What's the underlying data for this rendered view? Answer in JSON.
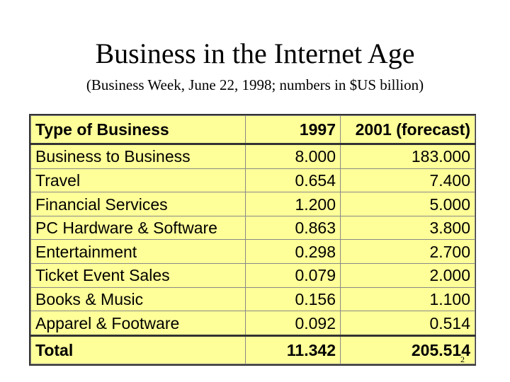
{
  "slide": {
    "title": "Business in the Internet Age",
    "subtitle": "(Business Week, June 22, 1998; numbers in $US billion)",
    "page_number": "2"
  },
  "table": {
    "headers": [
      "Type of Business",
      "1997",
      "2001 (forecast)"
    ],
    "rows": [
      [
        "Business to Business",
        "8.000",
        "183.000"
      ],
      [
        "Travel",
        "0.654",
        "7.400"
      ],
      [
        "Financial Services",
        "1.200",
        "5.000"
      ],
      [
        "PC Hardware & Software",
        "0.863",
        "3.800"
      ],
      [
        "Entertainment",
        "0.298",
        "2.700"
      ],
      [
        "Ticket Event Sales",
        "0.079",
        "2.000"
      ],
      [
        "Books & Music",
        "0.156",
        "1.100"
      ],
      [
        "Apparel & Footware",
        "0.092",
        "0.514"
      ]
    ],
    "total": [
      "Total",
      "11.342",
      "205.514"
    ],
    "colors": {
      "background": "#ffff99"
    }
  }
}
